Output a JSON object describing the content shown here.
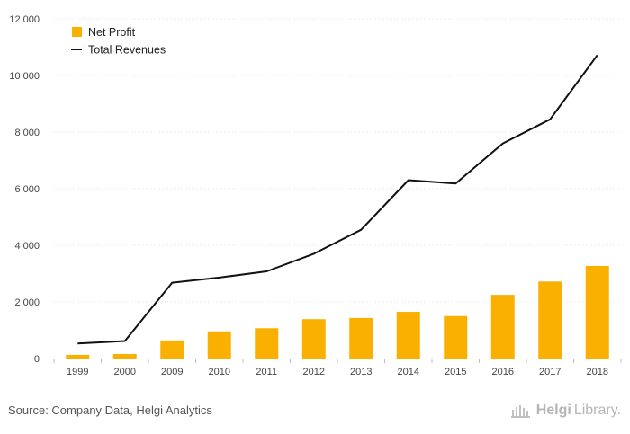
{
  "chart_data": {
    "type": "bar",
    "categories": [
      "1999",
      "2000",
      "2009",
      "2010",
      "2011",
      "2012",
      "2013",
      "2014",
      "2015",
      "2016",
      "2017",
      "2018"
    ],
    "series": [
      {
        "name": "Net Profit",
        "kind": "bar",
        "color": "#f9b000",
        "values": [
          130,
          160,
          640,
          960,
          1070,
          1390,
          1430,
          1650,
          1500,
          2250,
          2720,
          3270
        ]
      },
      {
        "name": "Total Revenues",
        "kind": "line",
        "color": "#111111",
        "values": [
          530,
          620,
          2680,
          2860,
          3080,
          3700,
          4550,
          6300,
          6180,
          7600,
          8450,
          10720
        ]
      }
    ],
    "yticks": [
      "0",
      "2 000",
      "4 000",
      "6 000",
      "8 000",
      "10 000",
      "12 000"
    ],
    "ylim": [
      0,
      12000
    ],
    "grid": true,
    "legend_position": "top-left"
  },
  "footer": {
    "source": "Source: Company Data, Helgi Analytics",
    "logo_bold": "Helgi",
    "logo_rest": "Library."
  }
}
